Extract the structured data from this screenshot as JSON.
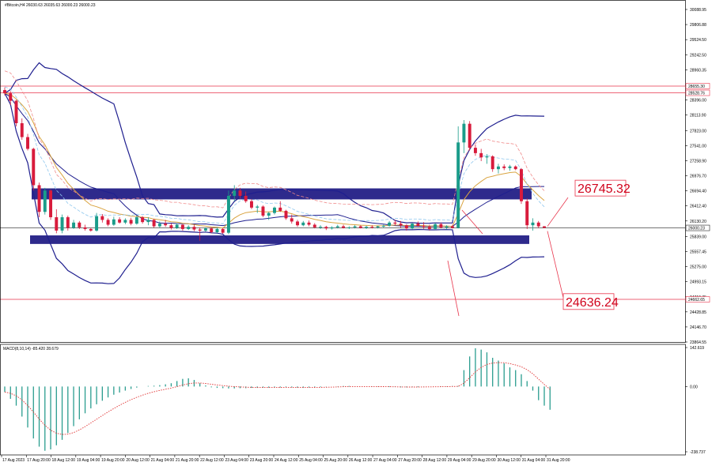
{
  "header": {
    "symbol_line": "#Bitcoin,H4  26030.63 26035.63 26000.23 26000.23",
    "macd_line": "MACD(8,10,14) -85.420 28.679"
  },
  "annotations": {
    "upper_target": "26745.32",
    "lower_target": "24636.24",
    "current_price_tag": "26000.23",
    "resistance_1_tag": "28655.30",
    "resistance_2_tag": "28528.76",
    "support_tag": "24662.65"
  },
  "colors": {
    "bull": "#1a9c8a",
    "bear": "#d81b3c",
    "zone": "#2e2a8c",
    "bands": "#1f1f8f",
    "ma_orange": "#d9a441",
    "ma_light_blue": "#8ec7ee",
    "ma_pink": "#f08a8a",
    "level_line": "#e8334a",
    "macd_hist": "#2a9d8f",
    "macd_signal": "#e03030"
  },
  "chart_data": [
    {
      "type": "candlestick",
      "title": "",
      "y_ticks": [
        "30088.95",
        "29806.88",
        "29524.50",
        "29242.50",
        "28960.35",
        "28678.22",
        "28396.00",
        "28113.90",
        "27823.00",
        "27541.00",
        "27258.90",
        "26976.70",
        "26694.40",
        "26412.40",
        "26130.20",
        "25839.00",
        "25557.45",
        "25275.00",
        "24993.15",
        "24710.75",
        "24428.85",
        "24146.70",
        "23864.55"
      ],
      "x_ticks": [
        "17 Aug 2023",
        "17 Aug 20:00",
        "18 Aug 12:00",
        "19 Aug 04:00",
        "19 Aug 20:00",
        "20 Aug 12:00",
        "21 Aug 04:00",
        "21 Aug 20:00",
        "22 Aug 12:00",
        "23 Aug 04:00",
        "23 Aug 20:00",
        "24 Aug 12:00",
        "25 Aug 04:00",
        "25 Aug 20:00",
        "26 Aug 12:00",
        "27 Aug 04:00",
        "27 Aug 20:00",
        "28 Aug 12:00",
        "29 Aug 04:00",
        "29 Aug 20:00",
        "30 Aug 12:00",
        "31 Aug 04:00",
        "31 Aug 20:00"
      ],
      "ylim": [
        23864.55,
        30088.95
      ],
      "current_price": 26000.23,
      "horizontal_levels": [
        28655.3,
        28528.76,
        24662.65
      ],
      "zones": [
        {
          "from": 26534,
          "to": 26740
        },
        {
          "from": 25700,
          "to": 25860
        }
      ],
      "candles": [
        {
          "o": 28580,
          "h": 28630,
          "l": 28480,
          "c": 28520
        },
        {
          "o": 28520,
          "h": 28560,
          "l": 28300,
          "c": 28380
        },
        {
          "o": 28380,
          "h": 28400,
          "l": 27900,
          "c": 27960
        },
        {
          "o": 27960,
          "h": 28050,
          "l": 27650,
          "c": 27700
        },
        {
          "o": 27700,
          "h": 27760,
          "l": 27450,
          "c": 27480
        },
        {
          "o": 27480,
          "h": 27500,
          "l": 26700,
          "c": 26800
        },
        {
          "o": 26800,
          "h": 26850,
          "l": 26200,
          "c": 26300
        },
        {
          "o": 26300,
          "h": 26750,
          "l": 26250,
          "c": 26700
        },
        {
          "o": 26700,
          "h": 26720,
          "l": 26150,
          "c": 26200
        },
        {
          "o": 26200,
          "h": 26350,
          "l": 25900,
          "c": 25950
        },
        {
          "o": 25950,
          "h": 26250,
          "l": 25900,
          "c": 26200
        },
        {
          "o": 26200,
          "h": 26230,
          "l": 25950,
          "c": 26000
        },
        {
          "o": 26000,
          "h": 26150,
          "l": 25980,
          "c": 26100
        },
        {
          "o": 26100,
          "h": 26130,
          "l": 25980,
          "c": 26010
        },
        {
          "o": 26010,
          "h": 26060,
          "l": 25950,
          "c": 25980
        },
        {
          "o": 25980,
          "h": 26000,
          "l": 25930,
          "c": 25950
        },
        {
          "o": 25950,
          "h": 26280,
          "l": 25930,
          "c": 26220
        },
        {
          "o": 26220,
          "h": 26260,
          "l": 26100,
          "c": 26150
        },
        {
          "o": 26150,
          "h": 26180,
          "l": 26030,
          "c": 26060
        },
        {
          "o": 26060,
          "h": 26210,
          "l": 26040,
          "c": 26160
        },
        {
          "o": 26160,
          "h": 26200,
          "l": 26080,
          "c": 26100
        },
        {
          "o": 26100,
          "h": 26180,
          "l": 26070,
          "c": 26150
        },
        {
          "o": 26150,
          "h": 26190,
          "l": 26050,
          "c": 26080
        },
        {
          "o": 26080,
          "h": 26230,
          "l": 26060,
          "c": 26200
        },
        {
          "o": 26200,
          "h": 26220,
          "l": 26080,
          "c": 26110
        },
        {
          "o": 26110,
          "h": 26200,
          "l": 26050,
          "c": 26150
        },
        {
          "o": 26150,
          "h": 26170,
          "l": 26000,
          "c": 26030
        },
        {
          "o": 26030,
          "h": 26120,
          "l": 26000,
          "c": 26080
        },
        {
          "o": 26080,
          "h": 26150,
          "l": 26020,
          "c": 26050
        },
        {
          "o": 26050,
          "h": 26080,
          "l": 25970,
          "c": 26000
        },
        {
          "o": 26000,
          "h": 26090,
          "l": 25980,
          "c": 26060
        },
        {
          "o": 26060,
          "h": 26070,
          "l": 25950,
          "c": 25980
        },
        {
          "o": 25980,
          "h": 26050,
          "l": 25960,
          "c": 26020
        },
        {
          "o": 26020,
          "h": 26060,
          "l": 25940,
          "c": 25970
        },
        {
          "o": 25970,
          "h": 26010,
          "l": 25760,
          "c": 25950
        },
        {
          "o": 25950,
          "h": 26010,
          "l": 25930,
          "c": 25990
        },
        {
          "o": 25990,
          "h": 26010,
          "l": 25900,
          "c": 25920
        },
        {
          "o": 25920,
          "h": 26010,
          "l": 25900,
          "c": 25980
        },
        {
          "o": 25980,
          "h": 26000,
          "l": 25890,
          "c": 25910
        },
        {
          "o": 25910,
          "h": 26700,
          "l": 25880,
          "c": 26600
        },
        {
          "o": 26600,
          "h": 26800,
          "l": 26500,
          "c": 26700
        },
        {
          "o": 26700,
          "h": 26750,
          "l": 26550,
          "c": 26600
        },
        {
          "o": 26600,
          "h": 26680,
          "l": 26470,
          "c": 26500
        },
        {
          "o": 26500,
          "h": 26540,
          "l": 26350,
          "c": 26380
        },
        {
          "o": 26380,
          "h": 26430,
          "l": 26280,
          "c": 26400
        },
        {
          "o": 26400,
          "h": 26420,
          "l": 26200,
          "c": 26230
        },
        {
          "o": 26230,
          "h": 26300,
          "l": 26150,
          "c": 26280
        },
        {
          "o": 26280,
          "h": 26400,
          "l": 26250,
          "c": 26380
        },
        {
          "o": 26380,
          "h": 26500,
          "l": 26300,
          "c": 26320
        },
        {
          "o": 26320,
          "h": 26340,
          "l": 26150,
          "c": 26180
        },
        {
          "o": 26180,
          "h": 26250,
          "l": 26080,
          "c": 26120
        },
        {
          "o": 26120,
          "h": 26150,
          "l": 26020,
          "c": 26050
        },
        {
          "o": 26050,
          "h": 26130,
          "l": 26030,
          "c": 26100
        },
        {
          "o": 26100,
          "h": 26140,
          "l": 26030,
          "c": 26060
        },
        {
          "o": 26060,
          "h": 26090,
          "l": 25990,
          "c": 26010
        },
        {
          "o": 26010,
          "h": 26050,
          "l": 25980,
          "c": 26020
        },
        {
          "o": 26020,
          "h": 26040,
          "l": 25960,
          "c": 25990
        },
        {
          "o": 25990,
          "h": 26030,
          "l": 25970,
          "c": 26010
        },
        {
          "o": 26010,
          "h": 26060,
          "l": 25990,
          "c": 26030
        },
        {
          "o": 26030,
          "h": 26060,
          "l": 25990,
          "c": 26000
        },
        {
          "o": 26000,
          "h": 26030,
          "l": 25980,
          "c": 26010
        },
        {
          "o": 26010,
          "h": 26050,
          "l": 25990,
          "c": 26030
        },
        {
          "o": 26030,
          "h": 26050,
          "l": 25990,
          "c": 26000
        },
        {
          "o": 26000,
          "h": 26040,
          "l": 25980,
          "c": 26020
        },
        {
          "o": 26020,
          "h": 26050,
          "l": 25990,
          "c": 26010
        },
        {
          "o": 26010,
          "h": 26040,
          "l": 25990,
          "c": 26030
        },
        {
          "o": 26030,
          "h": 26060,
          "l": 26000,
          "c": 26040
        },
        {
          "o": 26040,
          "h": 26130,
          "l": 26020,
          "c": 26100
        },
        {
          "o": 26100,
          "h": 26150,
          "l": 26050,
          "c": 26080
        },
        {
          "o": 26080,
          "h": 26130,
          "l": 26000,
          "c": 26050
        },
        {
          "o": 26050,
          "h": 26070,
          "l": 25950,
          "c": 25990
        },
        {
          "o": 25990,
          "h": 26100,
          "l": 25970,
          "c": 26080
        },
        {
          "o": 26080,
          "h": 26120,
          "l": 26020,
          "c": 26040
        },
        {
          "o": 26040,
          "h": 26110,
          "l": 25980,
          "c": 26020
        },
        {
          "o": 26020,
          "h": 26060,
          "l": 25950,
          "c": 25980
        },
        {
          "o": 25980,
          "h": 26090,
          "l": 25960,
          "c": 26070
        },
        {
          "o": 26070,
          "h": 26100,
          "l": 25990,
          "c": 26010
        },
        {
          "o": 26010,
          "h": 26050,
          "l": 25970,
          "c": 26030
        },
        {
          "o": 26030,
          "h": 26060,
          "l": 25990,
          "c": 26000
        },
        {
          "o": 26000,
          "h": 27900,
          "l": 25990,
          "c": 27600
        },
        {
          "o": 27600,
          "h": 28020,
          "l": 27400,
          "c": 27950
        },
        {
          "o": 27950,
          "h": 28000,
          "l": 27450,
          "c": 27500
        },
        {
          "o": 27500,
          "h": 27560,
          "l": 27350,
          "c": 27400
        },
        {
          "o": 27400,
          "h": 27480,
          "l": 27250,
          "c": 27320
        },
        {
          "o": 27320,
          "h": 27380,
          "l": 27200,
          "c": 27340
        },
        {
          "o": 27340,
          "h": 27360,
          "l": 27050,
          "c": 27100
        },
        {
          "o": 27100,
          "h": 27200,
          "l": 27020,
          "c": 27150
        },
        {
          "o": 27150,
          "h": 27190,
          "l": 27080,
          "c": 27120
        },
        {
          "o": 27120,
          "h": 27180,
          "l": 27070,
          "c": 27150
        },
        {
          "o": 27150,
          "h": 27170,
          "l": 27080,
          "c": 27100
        },
        {
          "o": 27100,
          "h": 27120,
          "l": 26450,
          "c": 26500
        },
        {
          "o": 26500,
          "h": 26550,
          "l": 25980,
          "c": 26050
        },
        {
          "o": 26050,
          "h": 26180,
          "l": 25950,
          "c": 26100
        },
        {
          "o": 26100,
          "h": 26130,
          "l": 26000,
          "c": 26030
        },
        {
          "o": 26030,
          "h": 26035,
          "l": 26000,
          "c": 26000
        }
      ]
    },
    {
      "type": "bar",
      "title": "",
      "y_ticks": [
        "142.619",
        "0.00",
        "-238.737"
      ],
      "ylim": [
        -238.737,
        142.619
      ],
      "series": [
        {
          "values": [
            -20,
            -45,
            -70,
            -110,
            -150,
            -190,
            -220,
            -235,
            -230,
            -215,
            -195,
            -170,
            -145,
            -120,
            -98,
            -80,
            -65,
            -52,
            -40,
            -30,
            -22,
            -15,
            -9,
            -4,
            0,
            2,
            3,
            5,
            8,
            12,
            20,
            28,
            30,
            24,
            12,
            4,
            -3,
            -5,
            -6,
            -7,
            -7,
            -6,
            -6,
            -5,
            -5,
            -4,
            -4,
            -3,
            -3,
            -2,
            -3,
            -4,
            -5,
            -3,
            -2,
            -2,
            -1,
            0,
            1,
            2,
            2,
            1,
            0,
            0,
            -1,
            -1,
            -1,
            -2,
            -2,
            -3,
            -3,
            -2,
            -2,
            -1,
            0,
            0,
            1,
            1,
            2,
            2,
            60,
            110,
            140,
            135,
            125,
            105,
            95,
            85,
            70,
            60,
            45,
            20,
            -15,
            -50,
            -70,
            -85
          ]
        }
      ]
    }
  ]
}
